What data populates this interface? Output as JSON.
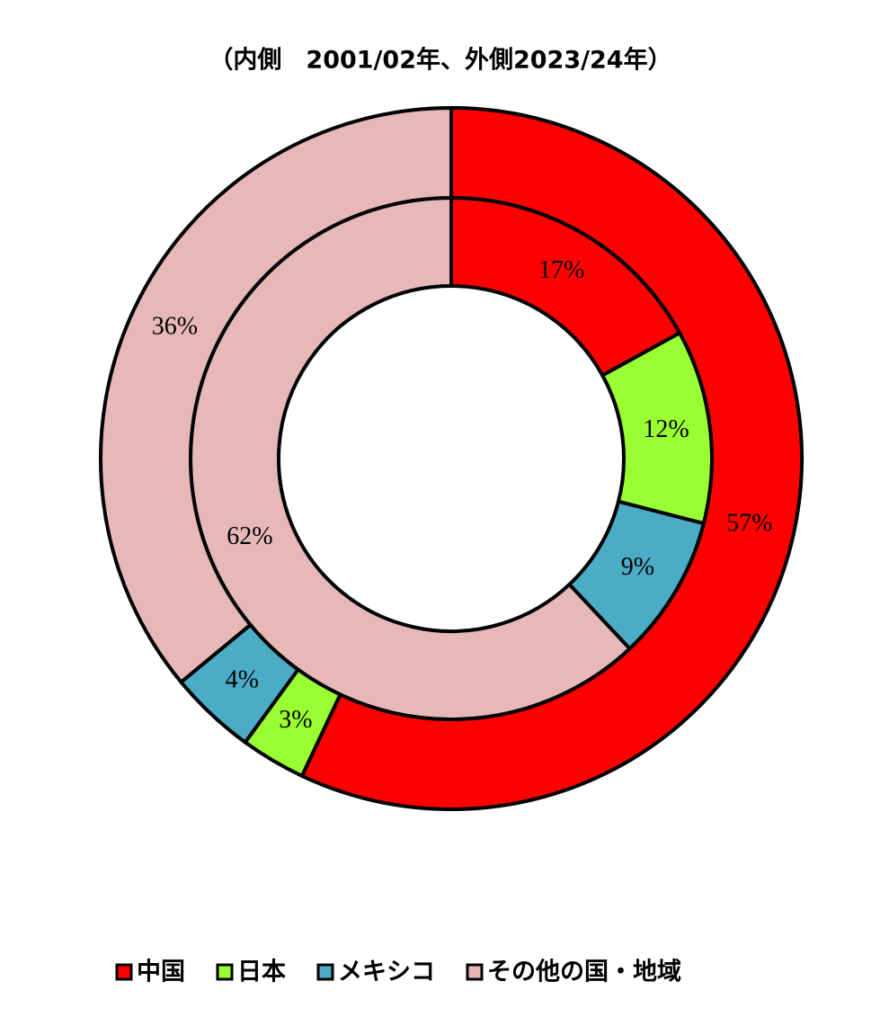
{
  "chart_data": {
    "type": "donut",
    "title": "（内側　2001/02年、外側2023/24年）",
    "categories": [
      "中国",
      "日本",
      "メキシコ",
      "その他の国・地域"
    ],
    "colors": [
      "#ff0000",
      "#99ff33",
      "#4bacc6",
      "#e6b9b8"
    ],
    "series": [
      {
        "values": [
          17,
          12,
          9,
          62
        ],
        "value_labels": [
          "17%",
          "12%",
          "9%",
          "62%"
        ]
      },
      {
        "values": [
          57,
          3,
          4,
          36
        ],
        "value_labels": [
          "57%",
          "3%",
          "4%",
          "36%"
        ]
      }
    ],
    "legend": "bottom"
  }
}
